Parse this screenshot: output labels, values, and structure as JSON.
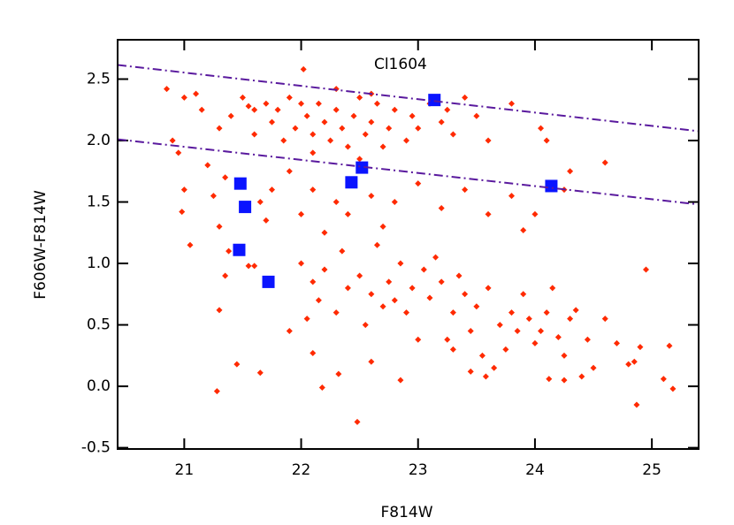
{
  "chart_data": {
    "type": "scatter",
    "annotations": [
      {
        "text": "Cl1604",
        "x": 22.85,
        "y": 2.62
      }
    ],
    "xlabel": "F814W",
    "ylabel": "F606W-F814W",
    "xlim": [
      20.43,
      25.4
    ],
    "ylim": [
      -0.51,
      2.82
    ],
    "xticks": [
      21,
      22,
      23,
      24,
      25
    ],
    "yticks": [
      -0.5,
      {
        "value": 0,
        "label": "0.0"
      },
      0.5,
      {
        "value": 1,
        "label": "1.0"
      },
      1.5,
      {
        "value": 2,
        "label": "2.0"
      },
      2.5
    ],
    "series": [
      {
        "color": "#ff2a00",
        "marker": "diamond",
        "x": [
          21.3,
          21.4,
          21.5,
          21.55,
          21.6,
          21.7,
          21.75,
          21.8,
          21.85,
          21.9,
          21.95,
          22.0,
          22.02,
          22.05,
          22.1,
          22.15,
          22.2,
          22.25,
          22.3,
          22.35,
          22.4,
          22.45,
          22.5,
          22.55,
          22.6,
          22.65,
          22.7,
          22.75,
          22.8,
          22.9,
          22.95,
          23.0,
          23.1,
          23.2,
          23.3,
          23.4,
          23.5,
          23.6,
          23.8,
          24.05,
          24.1,
          24.3,
          24.6,
          21.1,
          21.15,
          20.85,
          21.0,
          22.3,
          22.6,
          23.25,
          22.1,
          22.5,
          21.6,
          20.9,
          20.95,
          21.0,
          20.98,
          21.05,
          21.2,
          21.25,
          21.3,
          21.35,
          21.65,
          21.7,
          21.75,
          21.9,
          22.0,
          22.1,
          22.2,
          22.3,
          22.4,
          22.6,
          22.7,
          22.8,
          23.0,
          23.2,
          23.4,
          23.6,
          23.8,
          23.9,
          24.0,
          24.25,
          21.55,
          21.6,
          21.35,
          21.3,
          21.38,
          22.0,
          22.1,
          22.15,
          22.2,
          22.3,
          22.35,
          22.4,
          22.5,
          22.55,
          22.6,
          22.65,
          22.7,
          22.75,
          22.8,
          22.85,
          22.9,
          22.95,
          23.0,
          23.05,
          23.1,
          23.15,
          23.2,
          23.25,
          23.3,
          23.35,
          23.4,
          23.45,
          23.5,
          23.55,
          23.6,
          23.65,
          23.7,
          23.75,
          23.8,
          23.85,
          23.9,
          23.95,
          24.0,
          24.05,
          24.1,
          24.15,
          24.2,
          24.25,
          24.3,
          24.35,
          24.45,
          24.5,
          24.6,
          24.7,
          24.9,
          24.95,
          24.8,
          24.85,
          25.15,
          25.1,
          25.18,
          24.87,
          24.12,
          24.25,
          24.4,
          23.58,
          23.45,
          21.28,
          21.45,
          21.65,
          22.18,
          22.32,
          22.48,
          22.6,
          22.85,
          23.3,
          22.1,
          21.9,
          22.05
        ],
        "values": [
          2.1,
          2.2,
          2.35,
          2.28,
          2.05,
          2.3,
          2.15,
          2.25,
          2.0,
          2.35,
          2.1,
          2.3,
          2.58,
          2.2,
          2.05,
          2.3,
          2.15,
          2.0,
          2.25,
          2.1,
          1.95,
          2.2,
          2.35,
          2.05,
          2.15,
          2.3,
          1.95,
          2.1,
          2.25,
          2.0,
          2.2,
          2.1,
          2.3,
          2.15,
          2.05,
          2.35,
          2.2,
          2.0,
          2.3,
          2.1,
          2.0,
          1.75,
          1.82,
          2.38,
          2.25,
          2.42,
          2.35,
          2.42,
          2.38,
          2.25,
          1.9,
          1.85,
          2.25,
          2.0,
          1.9,
          1.6,
          1.42,
          1.15,
          1.8,
          1.55,
          1.3,
          1.7,
          1.5,
          1.35,
          1.6,
          1.75,
          1.4,
          1.6,
          1.25,
          1.5,
          1.4,
          1.55,
          1.3,
          1.5,
          1.65,
          1.45,
          1.6,
          1.4,
          1.55,
          1.27,
          1.4,
          1.6,
          0.98,
          0.98,
          0.9,
          0.62,
          1.1,
          1.0,
          0.85,
          0.7,
          0.95,
          0.6,
          1.1,
          0.8,
          0.9,
          0.5,
          0.75,
          1.15,
          0.65,
          0.85,
          0.7,
          1.0,
          0.6,
          0.8,
          0.38,
          0.95,
          0.72,
          1.05,
          0.85,
          0.38,
          0.6,
          0.9,
          0.75,
          0.45,
          0.65,
          0.25,
          0.8,
          0.15,
          0.5,
          0.3,
          0.6,
          0.45,
          0.75,
          0.55,
          0.35,
          0.45,
          0.6,
          0.8,
          0.4,
          0.25,
          0.55,
          0.62,
          0.38,
          0.15,
          0.55,
          0.35,
          0.32,
          0.95,
          0.18,
          0.2,
          0.33,
          0.06,
          -0.02,
          -0.15,
          0.06,
          0.05,
          0.08,
          0.08,
          0.12,
          -0.04,
          0.18,
          0.11,
          -0.01,
          0.1,
          -0.29,
          0.2,
          0.05,
          0.3,
          0.27,
          0.45,
          0.55
        ]
      },
      {
        "color": "#0a14ff",
        "marker": "square",
        "x": [
          21.48,
          21.52,
          21.47,
          21.72,
          22.43,
          22.52,
          23.14,
          24.14
        ],
        "values": [
          1.65,
          1.46,
          1.11,
          0.85,
          1.66,
          1.78,
          2.33,
          1.63
        ]
      },
      {
        "type": "line",
        "color": "#5a1a9e",
        "style": "dashdot",
        "x": [
          20.43,
          25.4
        ],
        "values": [
          2.615,
          2.076
        ]
      },
      {
        "type": "line",
        "color": "#5a1a9e",
        "style": "dashdot",
        "x": [
          20.43,
          25.4
        ],
        "values": [
          2.01,
          1.48
        ]
      }
    ]
  }
}
